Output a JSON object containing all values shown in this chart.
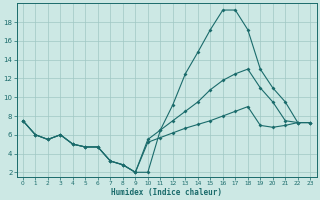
{
  "xlabel": "Humidex (Indice chaleur)",
  "xlim": [
    -0.5,
    23.5
  ],
  "ylim": [
    1.5,
    20
  ],
  "yticks": [
    2,
    4,
    6,
    8,
    10,
    12,
    14,
    16,
    18
  ],
  "xticks": [
    0,
    1,
    2,
    3,
    4,
    5,
    6,
    7,
    8,
    9,
    10,
    11,
    12,
    13,
    14,
    15,
    16,
    17,
    18,
    19,
    20,
    21,
    22,
    23
  ],
  "bg_color": "#cce8e4",
  "grid_color": "#a0c8c4",
  "line_color": "#1a6b6b",
  "line1_x": [
    0,
    1,
    2,
    3,
    4,
    5,
    6,
    7,
    8,
    9,
    10,
    11,
    12,
    13,
    14,
    15,
    16,
    17,
    18,
    19,
    20,
    21,
    22,
    23
  ],
  "line1_y": [
    7.5,
    6.0,
    5.5,
    6.0,
    5.0,
    4.7,
    4.7,
    3.2,
    2.8,
    2.0,
    2.0,
    6.5,
    9.2,
    12.5,
    14.8,
    17.2,
    19.3,
    19.3,
    17.2,
    13.0,
    11.0,
    9.5,
    7.3,
    7.3
  ],
  "line2_x": [
    0,
    1,
    2,
    3,
    4,
    5,
    6,
    7,
    8,
    9,
    10,
    11,
    12,
    13,
    14,
    15,
    16,
    17,
    18,
    19,
    20,
    21,
    22,
    23
  ],
  "line2_y": [
    7.5,
    6.0,
    5.5,
    6.0,
    5.0,
    4.7,
    4.7,
    3.2,
    2.8,
    2.0,
    5.5,
    6.5,
    7.5,
    8.5,
    9.5,
    10.8,
    11.8,
    12.5,
    13.0,
    11.0,
    9.5,
    7.5,
    7.3,
    7.3
  ],
  "line3_x": [
    0,
    1,
    2,
    3,
    4,
    5,
    6,
    7,
    8,
    9,
    10,
    11,
    12,
    13,
    14,
    15,
    16,
    17,
    18,
    19,
    20,
    21,
    22,
    23
  ],
  "line3_y": [
    7.5,
    6.0,
    5.5,
    6.0,
    5.0,
    4.7,
    4.7,
    3.2,
    2.8,
    2.0,
    5.2,
    5.7,
    6.2,
    6.7,
    7.1,
    7.5,
    8.0,
    8.5,
    9.0,
    7.0,
    6.8,
    7.0,
    7.3,
    7.3
  ]
}
